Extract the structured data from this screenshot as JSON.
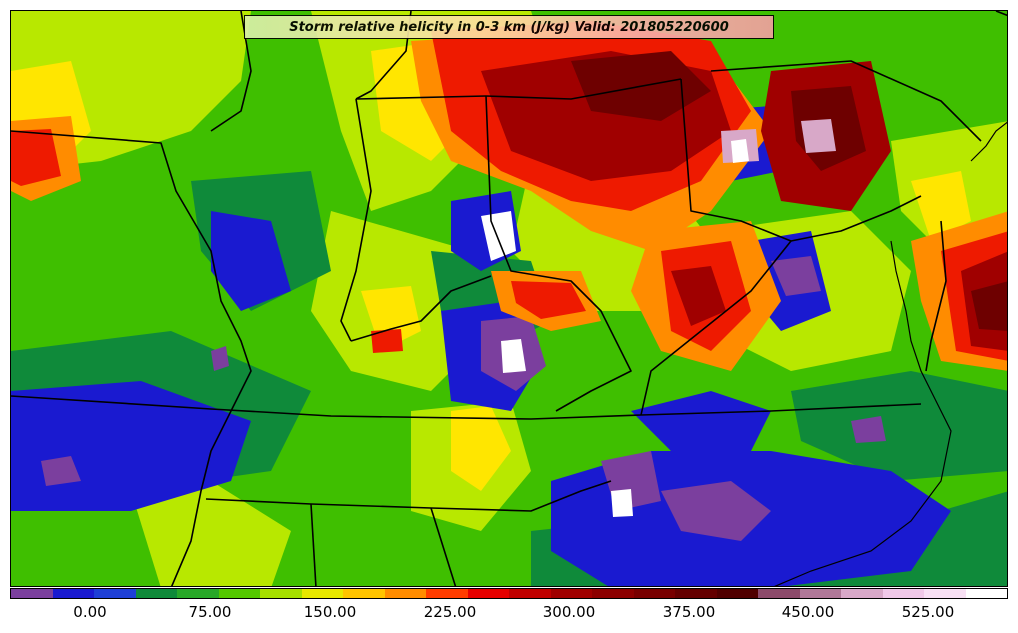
{
  "title": "Storm relative helicity in 0-3 km (J/kg) Valid: 201805220600",
  "legend": {
    "tick_labels": [
      "0.00",
      "75.00",
      "150.00",
      "225.00",
      "300.00",
      "375.00",
      "450.00",
      "525.00"
    ],
    "colors": [
      "#7b3f9e",
      "#1a1ad0",
      "#1e3fd6",
      "#0f8a3a",
      "#28a828",
      "#54c800",
      "#a6e000",
      "#e8e800",
      "#ffc400",
      "#ff8c00",
      "#ff3c00",
      "#e60000",
      "#c00000",
      "#a00000",
      "#8c0000",
      "#780000",
      "#640000",
      "#500000",
      "#8c4a6a",
      "#b07898",
      "#d8a8c8",
      "#f0c8e8",
      "#f8e0f4",
      "#ffffff"
    ]
  },
  "palette": {
    "purple": "#7b3f9e",
    "blue": "#1a1ad0",
    "darkgreen": "#0f8a3a",
    "green": "#3fbf00",
    "lime": "#b8e800",
    "yellow": "#ffe600",
    "orange": "#ff8c00",
    "red": "#ee1a00",
    "darkred": "#a00000",
    "maroon": "#6e0000",
    "pink": "#d8a8c8",
    "white": "#ffffff"
  }
}
